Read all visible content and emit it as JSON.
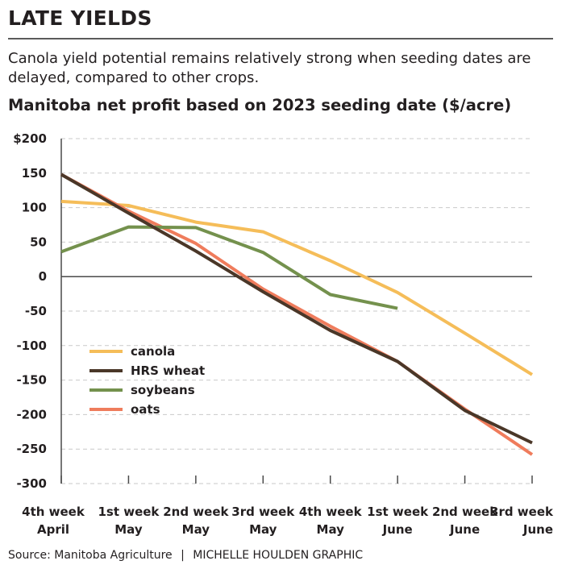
{
  "header": {
    "kicker": "LATE YIELDS",
    "dek": "Canola yield potential remains relatively strong when seeding dates are delayed, compared to other crops."
  },
  "footer": {
    "source": "Source: Manitoba Agriculture",
    "separator": "|",
    "credit": "MICHELLE HOULDEN GRAPHIC"
  },
  "colors": {
    "text": "#231f20",
    "grid": "#c9c9c9",
    "axis": "#4a4a4a"
  },
  "chart_data": {
    "type": "line",
    "title": "Manitoba net profit based on 2023 seeding date ($/acre)",
    "xlabel": "",
    "ylabel": "",
    "categories": [
      [
        "4th week",
        "April"
      ],
      [
        "1st week",
        "May"
      ],
      [
        "2nd week",
        "May"
      ],
      [
        "3rd week",
        "May"
      ],
      [
        "4th week",
        "May"
      ],
      [
        "1st week",
        "June"
      ],
      [
        "2nd week",
        "June"
      ],
      [
        "3rd week",
        "June"
      ]
    ],
    "ylim": [
      -300,
      200
    ],
    "yticks": [
      200,
      150,
      100,
      50,
      0,
      -50,
      -100,
      -150,
      -200,
      -250,
      -300
    ],
    "ytick_labels": [
      "$200",
      "150",
      "100",
      "50",
      "0",
      "-50",
      "-100",
      "-150",
      "-200",
      "-250",
      "-300"
    ],
    "grid": "horizontal dashed",
    "legend_position": "lower-left",
    "series": [
      {
        "name": "canola",
        "color": "#f5bd59",
        "values": [
          109,
          103,
          79,
          65,
          23,
          -23,
          -82,
          -142
        ]
      },
      {
        "name": "oats",
        "color": "#ef7c5c",
        "values": [
          148,
          95,
          48,
          -18,
          -72,
          -123,
          -192,
          -258
        ]
      },
      {
        "name": "soybeans",
        "color": "#74914d",
        "values": [
          36,
          72,
          71,
          35,
          -26,
          -46,
          null,
          null
        ]
      },
      {
        "name": "HRS wheat",
        "color": "#4a3728",
        "values": [
          148,
          92,
          37,
          -22,
          -78,
          -123,
          -194,
          -241
        ]
      }
    ],
    "legend_order": [
      "canola",
      "HRS wheat",
      "soybeans",
      "oats"
    ]
  }
}
